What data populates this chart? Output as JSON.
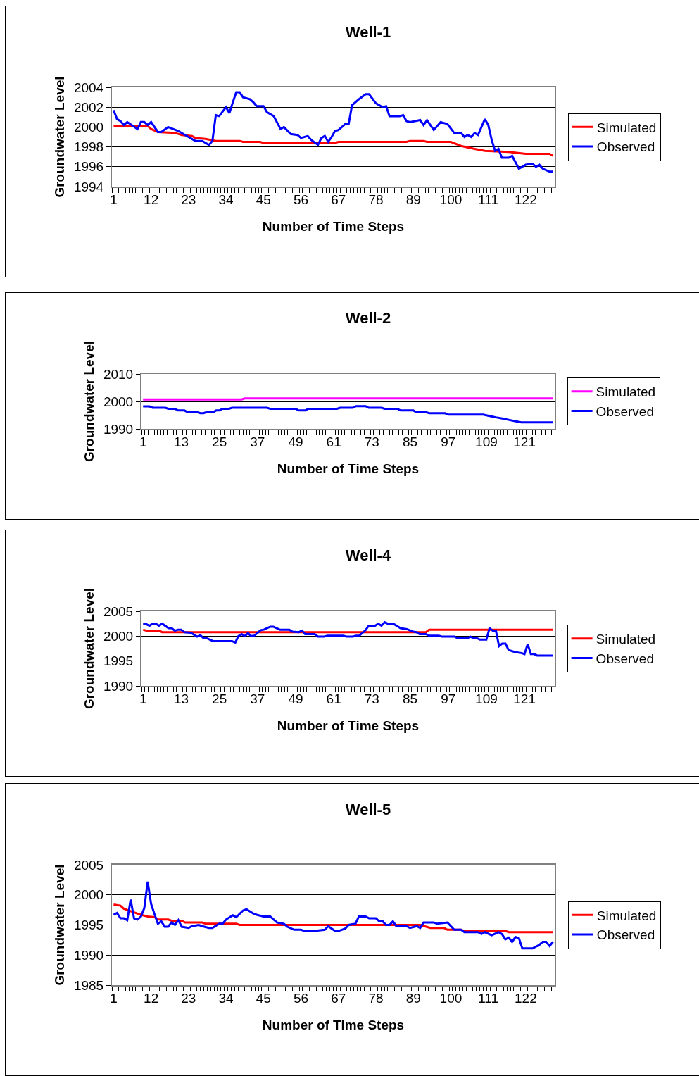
{
  "chart_data": [
    {
      "type": "line",
      "title": "Well-1",
      "xlabel": "Number of Time Steps",
      "ylabel": "Groundwater Level",
      "xlim": [
        0.5,
        130.5
      ],
      "xticks": [
        1,
        12,
        23,
        34,
        45,
        56,
        67,
        78,
        89,
        100,
        111,
        122
      ],
      "ylim": [
        1994,
        2004
      ],
      "yticks": [
        1994,
        1996,
        1998,
        2000,
        2002,
        2004
      ],
      "grid": "y",
      "legend": "right",
      "series": [
        {
          "name": "Simulated",
          "color": "#ff0000",
          "x": [
            1,
            11,
            12,
            14,
            19,
            21,
            24,
            25,
            28,
            31,
            38,
            39,
            44,
            45,
            66,
            67,
            87,
            88,
            92,
            93,
            100,
            103,
            107,
            110,
            117,
            122,
            129,
            130
          ],
          "values": [
            2000.1,
            2000.1,
            1999.8,
            1999.5,
            1999.4,
            1999.2,
            1999.1,
            1998.9,
            1998.8,
            1998.6,
            1998.6,
            1998.5,
            1998.5,
            1998.4,
            1998.4,
            1998.5,
            1998.5,
            1998.6,
            1998.6,
            1998.5,
            1998.5,
            1998.1,
            1997.8,
            1997.6,
            1997.5,
            1997.3,
            1997.3,
            1997.1
          ]
        },
        {
          "name": "Observed",
          "color": "#0000ff",
          "x": [
            1,
            2,
            3,
            4,
            5,
            8,
            9,
            10,
            11,
            12,
            14,
            15,
            17,
            20,
            22,
            25,
            27,
            29,
            30,
            31,
            32,
            34,
            35,
            36,
            37,
            38,
            39,
            41,
            42,
            43,
            45,
            46,
            48,
            50,
            51,
            53,
            55,
            56,
            58,
            59,
            61,
            62,
            63,
            64,
            65,
            66,
            67,
            69,
            70,
            71,
            73,
            75,
            76,
            78,
            80,
            81,
            82,
            85,
            86,
            87,
            88,
            91,
            92,
            93,
            95,
            97,
            99,
            101,
            103,
            104,
            105,
            106,
            107,
            108,
            110,
            111,
            112,
            113,
            114,
            115,
            117,
            118,
            120,
            122,
            124,
            125,
            126,
            127,
            129,
            130
          ],
          "values": [
            2001.7,
            2000.8,
            2000.6,
            2000.2,
            2000.5,
            1999.8,
            2000.5,
            2000.5,
            2000.2,
            2000.5,
            1999.5,
            1999.5,
            2000,
            1999.6,
            1999.2,
            1998.6,
            1998.6,
            1998.2,
            1998.6,
            2001.2,
            2001.1,
            2002,
            2001.4,
            2002.5,
            2003.5,
            2003.5,
            2003,
            2002.8,
            2002.5,
            2002.1,
            2002.1,
            2001.5,
            2001.1,
            1999.8,
            2000,
            1999.3,
            1999.2,
            1998.9,
            1999.1,
            1998.7,
            1998.2,
            1998.9,
            1999.1,
            1998.5,
            1999,
            1999.6,
            1999.7,
            2000.3,
            2000.3,
            2002.2,
            2002.8,
            2003.3,
            2003.3,
            2002.4,
            2002,
            2002.1,
            2001.1,
            2001.1,
            2001.2,
            2000.6,
            2000.5,
            2000.7,
            2000.2,
            2000.7,
            1999.7,
            2000.5,
            2000.3,
            1999.4,
            1999.4,
            1999,
            1999.2,
            1999,
            1999.4,
            1999.2,
            2000.8,
            2000.2,
            1998.7,
            1997.6,
            1997.8,
            1996.9,
            1996.9,
            1997.1,
            1995.8,
            1996.2,
            1996.3,
            1996,
            1996.2,
            1995.8,
            1995.5,
            1995.5
          ]
        }
      ]
    },
    {
      "type": "line",
      "title": "Well-2",
      "xlabel": "Number of Time Steps",
      "ylabel": "Groundwater Level",
      "xlim": [
        0.5,
        130.5
      ],
      "xticks": [
        1,
        13,
        25,
        37,
        49,
        61,
        73,
        85,
        97,
        109,
        121
      ],
      "ylim": [
        1990,
        2010
      ],
      "yticks": [
        1990,
        2000,
        2010
      ],
      "grid": "y",
      "legend": "right",
      "series": [
        {
          "name": "Simulated",
          "color": "#ff00ff",
          "x": [
            1,
            32,
            33,
            130
          ],
          "values": [
            2000.7,
            2000.7,
            2001.1,
            2001.1
          ]
        },
        {
          "name": "Observed",
          "color": "#0000ff",
          "x": [
            1,
            3,
            4,
            8,
            9,
            11,
            12,
            14,
            15,
            18,
            19,
            20,
            21,
            23,
            24,
            25,
            26,
            28,
            29,
            40,
            41,
            49,
            50,
            52,
            53,
            62,
            63,
            67,
            68,
            71,
            72,
            76,
            77,
            81,
            82,
            86,
            87,
            90,
            91,
            96,
            97,
            108,
            110,
            112,
            114,
            116,
            118,
            120,
            130
          ],
          "values": [
            1998.2,
            1998.2,
            1997.7,
            1997.7,
            1997.3,
            1997.3,
            1996.7,
            1996.7,
            1996.1,
            1996.1,
            1995.7,
            1995.7,
            1996.1,
            1996.1,
            1996.7,
            1996.7,
            1997.3,
            1997.3,
            1997.7,
            1997.7,
            1997.3,
            1997.3,
            1996.7,
            1996.7,
            1997.3,
            1997.3,
            1997.7,
            1997.7,
            1998.3,
            1998.3,
            1997.7,
            1997.7,
            1997.3,
            1997.3,
            1996.7,
            1996.7,
            1996.1,
            1996.1,
            1995.7,
            1995.7,
            1995.2,
            1995.2,
            1994.7,
            1994.2,
            1993.8,
            1993.3,
            1992.8,
            1992.4,
            1992.4
          ]
        }
      ]
    },
    {
      "type": "line",
      "title": "Well-4",
      "xlabel": "Number of Time Steps",
      "ylabel": "Groundwater Level",
      "xlim": [
        0.5,
        130.5
      ],
      "xticks": [
        1,
        13,
        25,
        37,
        49,
        61,
        73,
        85,
        97,
        109,
        121
      ],
      "ylim": [
        1990,
        2005
      ],
      "yticks": [
        1990,
        1995,
        2000,
        2005
      ],
      "grid": "y",
      "legend": "right",
      "series": [
        {
          "name": "Simulated",
          "color": "#ff0000",
          "x": [
            1,
            2,
            6,
            7,
            90,
            91,
            130
          ],
          "values": [
            2001.3,
            2001.1,
            2001.1,
            2000.8,
            2000.8,
            2001.3,
            2001.3
          ]
        },
        {
          "name": "Observed",
          "color": "#0000ff",
          "x": [
            1,
            2,
            3,
            4,
            5,
            6,
            7,
            9,
            10,
            11,
            12,
            13,
            14,
            16,
            18,
            19,
            20,
            21,
            23,
            29,
            30,
            31,
            32,
            33,
            34,
            35,
            36,
            38,
            39,
            41,
            42,
            44,
            47,
            48,
            50,
            51,
            52,
            55,
            56,
            58,
            59,
            64,
            65,
            67,
            68,
            69,
            71,
            72,
            74,
            75,
            76,
            77,
            78,
            80,
            82,
            84,
            86,
            87,
            88,
            90,
            91,
            94,
            95,
            99,
            100,
            103,
            104,
            105,
            106,
            107,
            109,
            110,
            111,
            112,
            113,
            114,
            115,
            116,
            118,
            120,
            121,
            122,
            123,
            124,
            125,
            130
          ],
          "values": [
            2002.4,
            2002.4,
            2002.1,
            2002.5,
            2002.5,
            2002.1,
            2002.5,
            2001.6,
            2001.6,
            2001.1,
            2001.3,
            2001.3,
            2000.8,
            2000.7,
            1999.9,
            2000.2,
            1999.6,
            1999.6,
            1999,
            1999,
            1998.7,
            2000,
            2000.4,
            2000,
            2000.6,
            2000,
            2000.1,
            2001.2,
            2001.3,
            2001.9,
            2001.9,
            2001.3,
            2001.3,
            2000.9,
            2000.8,
            2001.1,
            2000.4,
            2000.4,
            1999.9,
            1999.9,
            2000.1,
            2000.1,
            1999.9,
            1999.9,
            2000.1,
            2000.1,
            2001.2,
            2002.1,
            2002.1,
            2002.5,
            2002.1,
            2002.8,
            2002.5,
            2002.4,
            2001.6,
            2001.4,
            2000.9,
            2000.8,
            2000.4,
            2000.4,
            2000.1,
            2000.1,
            1999.9,
            1999.9,
            1999.6,
            1999.6,
            1999.9,
            1999.6,
            1999.6,
            1999.3,
            1999.3,
            2001.6,
            2001.1,
            2001.1,
            1998,
            1998.5,
            1998.5,
            1997.2,
            1996.8,
            1996.6,
            1996.4,
            1998.4,
            1996.4,
            1996.4,
            1996.1,
            1996.1
          ]
        }
      ]
    },
    {
      "type": "line",
      "title": "Well-5",
      "xlabel": "Number of Time Steps",
      "ylabel": "Groundwater Level",
      "xlim": [
        0.5,
        130.5
      ],
      "xticks": [
        1,
        12,
        23,
        34,
        45,
        56,
        67,
        78,
        89,
        100,
        111,
        122
      ],
      "ylim": [
        1985,
        2005
      ],
      "yticks": [
        1985,
        1990,
        1995,
        2000,
        2005
      ],
      "grid": "y",
      "legend": "right",
      "series": [
        {
          "name": "Simulated",
          "color": "#ff0000",
          "x": [
            1,
            3,
            4,
            7,
            9,
            11,
            13,
            14,
            17,
            18,
            21,
            22,
            27,
            28,
            37,
            38,
            91,
            94,
            98,
            99,
            103,
            104,
            116,
            117,
            130
          ],
          "values": [
            1998.4,
            1998.2,
            1997.7,
            1997.1,
            1996.7,
            1996.4,
            1996.3,
            1995.9,
            1995.9,
            1995.7,
            1995.7,
            1995.4,
            1995.4,
            1995.2,
            1995.2,
            1995,
            1995,
            1994.5,
            1994.5,
            1994.2,
            1994.2,
            1994,
            1994,
            1993.8,
            1993.8
          ]
        },
        {
          "name": "Observed",
          "color": "#0000ff",
          "x": [
            1,
            2,
            3,
            4,
            5,
            6,
            7,
            8,
            9,
            10,
            11,
            12,
            13,
            14,
            15,
            16,
            17,
            18,
            19,
            20,
            21,
            23,
            24,
            26,
            27,
            29,
            30,
            32,
            33,
            34,
            36,
            37,
            39,
            40,
            42,
            43,
            45,
            47,
            49,
            51,
            52,
            54,
            56,
            57,
            60,
            63,
            64,
            66,
            67,
            68,
            69,
            70,
            72,
            73,
            75,
            76,
            78,
            79,
            80,
            81,
            82,
            83,
            84,
            87,
            88,
            90,
            91,
            92,
            95,
            96,
            99,
            101,
            103,
            104,
            108,
            109,
            110,
            112,
            114,
            115,
            116,
            117,
            118,
            119,
            120,
            121,
            124,
            126,
            127,
            128,
            129,
            130
          ],
          "values": [
            1996.7,
            1997,
            1996.1,
            1996.1,
            1995.8,
            1999.2,
            1996.1,
            1995.9,
            1996.4,
            1997.8,
            2002.2,
            1998.5,
            1996.8,
            1995.2,
            1995.6,
            1994.7,
            1994.7,
            1995.4,
            1995,
            1995.8,
            1994.7,
            1994.5,
            1994.8,
            1995,
            1994.8,
            1994.5,
            1994.5,
            1995.2,
            1995.2,
            1995.9,
            1996.6,
            1996.3,
            1997.4,
            1997.6,
            1996.9,
            1996.7,
            1996.4,
            1996.4,
            1995.4,
            1995.2,
            1994.7,
            1994.2,
            1994.2,
            1994,
            1994,
            1994.2,
            1994.8,
            1994,
            1994,
            1994.2,
            1994.4,
            1995,
            1995.2,
            1996.4,
            1996.4,
            1996.1,
            1996.1,
            1995.6,
            1995.6,
            1995,
            1995,
            1995.6,
            1994.8,
            1994.8,
            1994.5,
            1994.8,
            1994.5,
            1995.4,
            1995.4,
            1995.2,
            1995.4,
            1994.2,
            1994.2,
            1993.8,
            1993.8,
            1993.5,
            1993.8,
            1993.3,
            1993.8,
            1993.5,
            1992.6,
            1992.9,
            1992.2,
            1993,
            1992.8,
            1991.1,
            1991.1,
            1991.7,
            1992.2,
            1992.2,
            1991.5,
            1992.2
          ]
        }
      ]
    }
  ]
}
